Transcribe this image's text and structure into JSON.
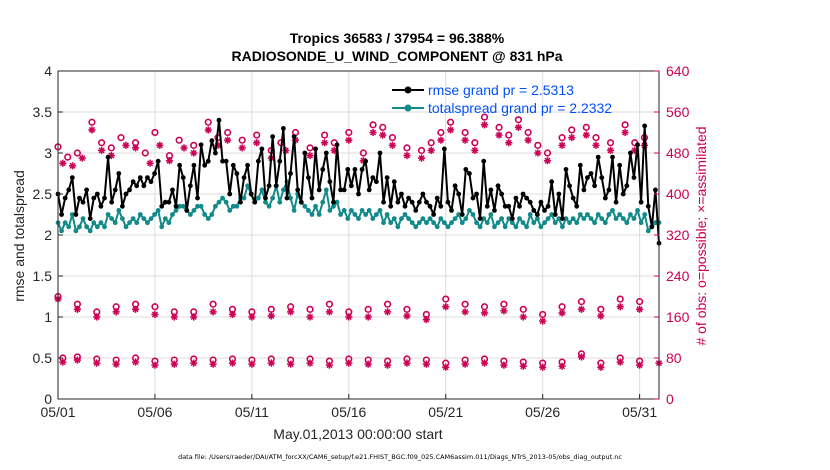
{
  "colors": {
    "rmse": "#000000",
    "spread": "#138a8a",
    "obs": "#cc0055",
    "legend_text": "#0050ff",
    "grid": "#dcdcdc"
  },
  "chart_data": {
    "type": "line",
    "title_line1": "Tropics 36583 / 37954 = 96.388%",
    "title_line2": "RADIOSONDE_U_WIND_COMPONENT @ 831 hPa",
    "xlabel": "May.01,2013 00:00:00 start",
    "ylabel": "rmse and totalspread",
    "ylabel_right": "# of obs: o=possible; ×=assimilated",
    "footnote": "data file: /Users/raeder/DAI/ATM_forcXX/CAM6_setup/f.e21.FHIST_BGC.f09_025.CAM6assim.011/Diags_NTrS_2013-05/obs_diag_output.nc",
    "legend_location": "top-right",
    "grid": true,
    "xlim": [
      1,
      32
    ],
    "ylim": [
      0,
      4
    ],
    "ylim_right": [
      0,
      640
    ],
    "x_tick_values": [
      1,
      6,
      11,
      16,
      21,
      26,
      31
    ],
    "x_tick_labels": [
      "05/01",
      "05/06",
      "05/11",
      "05/16",
      "05/21",
      "05/26",
      "05/31"
    ],
    "y_ticks": [
      "0",
      "0.5",
      "1",
      "1.5",
      "2",
      "2.5",
      "3",
      "3.5",
      "4"
    ],
    "y_ticks_right": [
      "0",
      "80",
      "160",
      "240",
      "320",
      "400",
      "480",
      "560",
      "640"
    ],
    "series": [
      {
        "name": "rmse grand pr = 2.5313",
        "marker": "dot",
        "values": [
          2.5,
          2.25,
          2.45,
          2.55,
          2.7,
          2.25,
          2.45,
          2.4,
          2.55,
          2.2,
          2.45,
          2.5,
          2.35,
          2.45,
          2.95,
          2.4,
          2.55,
          2.75,
          2.35,
          2.5,
          2.55,
          2.65,
          2.6,
          2.7,
          2.6,
          2.7,
          2.65,
          2.75,
          2.9,
          2.35,
          2.4,
          2.4,
          2.55,
          2.35,
          2.85,
          2.7,
          2.3,
          2.6,
          2.85,
          2.45,
          3.1,
          2.85,
          2.9,
          3.15,
          3.0,
          3.4,
          2.9,
          2.9,
          2.5,
          2.85,
          2.75,
          2.4,
          2.7,
          2.85,
          2.5,
          2.4,
          2.9,
          3.05,
          2.45,
          2.6,
          3.2,
          2.6,
          2.9,
          3.3,
          2.45,
          2.75,
          3.2,
          2.55,
          2.4,
          3.0,
          2.7,
          2.45,
          3.05,
          2.55,
          2.8,
          3.0,
          2.65,
          2.4,
          3.1,
          2.55,
          2.55,
          2.8,
          2.6,
          2.8,
          2.5,
          2.8,
          2.9,
          2.55,
          2.7,
          2.65,
          3.0,
          2.4,
          2.7,
          2.35,
          2.65,
          2.4,
          2.5,
          2.35,
          2.45,
          2.4,
          2.3,
          2.4,
          2.5,
          2.4,
          2.35,
          2.25,
          2.45,
          2.35,
          3.05,
          2.4,
          2.3,
          2.6,
          2.5,
          2.25,
          2.8,
          2.75,
          2.45,
          2.5,
          2.2,
          2.9,
          2.35,
          2.55,
          2.3,
          2.6,
          2.5,
          2.35,
          2.35,
          2.2,
          2.45,
          2.35,
          2.5,
          2.45,
          2.4,
          2.3,
          2.25,
          2.4,
          2.3,
          2.35,
          2.65,
          2.25,
          2.5,
          2.2,
          2.8,
          2.6,
          2.45,
          2.35,
          2.85,
          2.55,
          2.7,
          2.75,
          2.6,
          2.95,
          2.7,
          2.45,
          2.55,
          2.95,
          2.4,
          2.85,
          2.5,
          2.6,
          3.0,
          2.7,
          3.1,
          2.4,
          3.33,
          2.35,
          2.1,
          2.55,
          1.9
        ]
      },
      {
        "name": "totalspread grand pr = 2.2332",
        "marker": "dot",
        "values": [
          2.15,
          2.05,
          2.15,
          2.1,
          2.25,
          2.05,
          2.1,
          2.2,
          2.1,
          2.05,
          2.15,
          2.1,
          2.15,
          2.1,
          2.25,
          2.2,
          2.15,
          2.3,
          2.2,
          2.1,
          2.15,
          2.2,
          2.15,
          2.25,
          2.2,
          2.15,
          2.2,
          2.25,
          2.3,
          2.1,
          2.2,
          2.15,
          2.25,
          2.3,
          2.35,
          2.35,
          2.3,
          2.25,
          2.3,
          2.35,
          2.35,
          2.25,
          2.2,
          2.25,
          2.35,
          2.4,
          2.45,
          2.4,
          2.3,
          2.35,
          2.35,
          2.45,
          2.45,
          2.6,
          2.5,
          2.4,
          2.45,
          2.55,
          2.4,
          2.35,
          2.45,
          2.6,
          2.4,
          2.55,
          2.65,
          2.45,
          2.3,
          2.5,
          2.4,
          2.35,
          2.3,
          2.25,
          2.35,
          2.25,
          2.4,
          2.55,
          2.3,
          2.35,
          2.4,
          2.25,
          2.3,
          2.2,
          2.3,
          2.25,
          2.2,
          2.3,
          2.25,
          2.3,
          2.2,
          2.25,
          2.3,
          2.15,
          2.25,
          2.15,
          2.2,
          2.1,
          2.2,
          2.25,
          2.2,
          2.15,
          2.1,
          2.15,
          2.2,
          2.15,
          2.2,
          2.15,
          2.1,
          2.2,
          2.15,
          2.1,
          2.15,
          2.2,
          2.25,
          2.15,
          2.2,
          2.3,
          2.25,
          2.15,
          2.1,
          2.2,
          2.15,
          2.25,
          2.1,
          2.15,
          2.2,
          2.1,
          2.2,
          2.15,
          2.1,
          2.2,
          2.15,
          2.1,
          2.25,
          2.15,
          2.2,
          2.1,
          2.15,
          2.2,
          2.25,
          2.15,
          2.2,
          2.1,
          2.2,
          2.15,
          2.2,
          2.15,
          2.25,
          2.2,
          2.25,
          2.2,
          2.15,
          2.25,
          2.2,
          2.15,
          2.25,
          2.3,
          2.2,
          2.25,
          2.2,
          2.15,
          2.25,
          2.2,
          2.3,
          2.15,
          2.25,
          2.05,
          2.1,
          2.15,
          2.15
        ]
      }
    ],
    "obs_possible": [
      {
        "x": 1.0,
        "y": 492
      },
      {
        "x": 1.5,
        "y": 472
      },
      {
        "x": 2.0,
        "y": 480
      },
      {
        "x": 2.75,
        "y": 540
      },
      {
        "x": 3.25,
        "y": 500
      },
      {
        "x": 3.75,
        "y": 490
      },
      {
        "x": 4.25,
        "y": 510
      },
      {
        "x": 5.0,
        "y": 500
      },
      {
        "x": 5.5,
        "y": 480
      },
      {
        "x": 6.0,
        "y": 520
      },
      {
        "x": 6.75,
        "y": 475
      },
      {
        "x": 7.25,
        "y": 505
      },
      {
        "x": 8.0,
        "y": 495
      },
      {
        "x": 8.75,
        "y": 540
      },
      {
        "x": 9.25,
        "y": 510
      },
      {
        "x": 9.75,
        "y": 520
      },
      {
        "x": 10.5,
        "y": 505
      },
      {
        "x": 11.25,
        "y": 515
      },
      {
        "x": 12.0,
        "y": 485
      },
      {
        "x": 12.5,
        "y": 500
      },
      {
        "x": 13.25,
        "y": 520
      },
      {
        "x": 14.0,
        "y": 490
      },
      {
        "x": 14.75,
        "y": 515
      },
      {
        "x": 15.25,
        "y": 500
      },
      {
        "x": 16.0,
        "y": 520
      },
      {
        "x": 16.75,
        "y": 480
      },
      {
        "x": 17.25,
        "y": 535
      },
      {
        "x": 17.75,
        "y": 530
      },
      {
        "x": 18.25,
        "y": 510
      },
      {
        "x": 19.0,
        "y": 490
      },
      {
        "x": 19.75,
        "y": 485
      },
      {
        "x": 20.25,
        "y": 500
      },
      {
        "x": 20.75,
        "y": 520
      },
      {
        "x": 21.25,
        "y": 540
      },
      {
        "x": 22.0,
        "y": 520
      },
      {
        "x": 22.5,
        "y": 500
      },
      {
        "x": 23.0,
        "y": 550
      },
      {
        "x": 23.75,
        "y": 530
      },
      {
        "x": 24.25,
        "y": 515
      },
      {
        "x": 24.75,
        "y": 545
      },
      {
        "x": 25.25,
        "y": 520
      },
      {
        "x": 25.75,
        "y": 495
      },
      {
        "x": 26.25,
        "y": 480
      },
      {
        "x": 27.0,
        "y": 510
      },
      {
        "x": 27.5,
        "y": 525
      },
      {
        "x": 28.25,
        "y": 530
      },
      {
        "x": 28.75,
        "y": 510
      },
      {
        "x": 29.5,
        "y": 500
      },
      {
        "x": 30.25,
        "y": 535
      },
      {
        "x": 30.75,
        "y": 500
      },
      {
        "x": 31.25,
        "y": 510
      },
      {
        "x": 1.0,
        "y": 200
      },
      {
        "x": 2.0,
        "y": 185
      },
      {
        "x": 3.0,
        "y": 170
      },
      {
        "x": 4.0,
        "y": 180
      },
      {
        "x": 5.0,
        "y": 185
      },
      {
        "x": 6.0,
        "y": 180
      },
      {
        "x": 7.0,
        "y": 170
      },
      {
        "x": 8.0,
        "y": 170
      },
      {
        "x": 9.0,
        "y": 185
      },
      {
        "x": 10.0,
        "y": 175
      },
      {
        "x": 11.0,
        "y": 170
      },
      {
        "x": 12.0,
        "y": 175
      },
      {
        "x": 13.0,
        "y": 180
      },
      {
        "x": 14.0,
        "y": 175
      },
      {
        "x": 15.0,
        "y": 185
      },
      {
        "x": 16.0,
        "y": 170
      },
      {
        "x": 17.0,
        "y": 175
      },
      {
        "x": 18.0,
        "y": 185
      },
      {
        "x": 19.0,
        "y": 175
      },
      {
        "x": 20.0,
        "y": 165
      },
      {
        "x": 21.0,
        "y": 195
      },
      {
        "x": 22.0,
        "y": 185
      },
      {
        "x": 23.0,
        "y": 180
      },
      {
        "x": 24.0,
        "y": 185
      },
      {
        "x": 25.0,
        "y": 175
      },
      {
        "x": 26.0,
        "y": 165
      },
      {
        "x": 27.0,
        "y": 180
      },
      {
        "x": 28.0,
        "y": 190
      },
      {
        "x": 29.0,
        "y": 175
      },
      {
        "x": 30.0,
        "y": 195
      },
      {
        "x": 31.0,
        "y": 190
      },
      {
        "x": 1.25,
        "y": 80
      },
      {
        "x": 2.0,
        "y": 82
      },
      {
        "x": 3.0,
        "y": 78
      },
      {
        "x": 4.0,
        "y": 76
      },
      {
        "x": 5.0,
        "y": 80
      },
      {
        "x": 6.0,
        "y": 74
      },
      {
        "x": 7.0,
        "y": 76
      },
      {
        "x": 8.0,
        "y": 78
      },
      {
        "x": 9.0,
        "y": 76
      },
      {
        "x": 10.0,
        "y": 78
      },
      {
        "x": 11.0,
        "y": 76
      },
      {
        "x": 12.0,
        "y": 78
      },
      {
        "x": 13.0,
        "y": 76
      },
      {
        "x": 14.0,
        "y": 78
      },
      {
        "x": 15.0,
        "y": 74
      },
      {
        "x": 16.0,
        "y": 78
      },
      {
        "x": 17.0,
        "y": 76
      },
      {
        "x": 18.0,
        "y": 74
      },
      {
        "x": 19.0,
        "y": 78
      },
      {
        "x": 20.0,
        "y": 76
      },
      {
        "x": 21.0,
        "y": 70
      },
      {
        "x": 22.0,
        "y": 76
      },
      {
        "x": 23.0,
        "y": 78
      },
      {
        "x": 24.0,
        "y": 74
      },
      {
        "x": 25.0,
        "y": 72
      },
      {
        "x": 26.0,
        "y": 70
      },
      {
        "x": 27.0,
        "y": 72
      },
      {
        "x": 28.0,
        "y": 88
      },
      {
        "x": 29.0,
        "y": 70
      },
      {
        "x": 30.0,
        "y": 80
      },
      {
        "x": 31.0,
        "y": 74
      }
    ],
    "obs_assimilated": [
      {
        "x": 1.25,
        "y": 460
      },
      {
        "x": 1.75,
        "y": 455
      },
      {
        "x": 2.25,
        "y": 470
      },
      {
        "x": 2.75,
        "y": 525
      },
      {
        "x": 3.25,
        "y": 485
      },
      {
        "x": 3.75,
        "y": 475
      },
      {
        "x": 4.5,
        "y": 495
      },
      {
        "x": 5.0,
        "y": 490
      },
      {
        "x": 5.75,
        "y": 460
      },
      {
        "x": 6.25,
        "y": 495
      },
      {
        "x": 6.75,
        "y": 465
      },
      {
        "x": 7.5,
        "y": 490
      },
      {
        "x": 8.0,
        "y": 480
      },
      {
        "x": 8.75,
        "y": 525
      },
      {
        "x": 9.25,
        "y": 495
      },
      {
        "x": 9.75,
        "y": 505
      },
      {
        "x": 10.5,
        "y": 490
      },
      {
        "x": 11.25,
        "y": 500
      },
      {
        "x": 12.0,
        "y": 470
      },
      {
        "x": 12.75,
        "y": 485
      },
      {
        "x": 13.25,
        "y": 505
      },
      {
        "x": 14.0,
        "y": 475
      },
      {
        "x": 14.75,
        "y": 500
      },
      {
        "x": 15.25,
        "y": 485
      },
      {
        "x": 16.0,
        "y": 505
      },
      {
        "x": 16.75,
        "y": 465
      },
      {
        "x": 17.25,
        "y": 520
      },
      {
        "x": 17.75,
        "y": 515
      },
      {
        "x": 18.25,
        "y": 495
      },
      {
        "x": 19.0,
        "y": 475
      },
      {
        "x": 19.75,
        "y": 470
      },
      {
        "x": 20.25,
        "y": 485
      },
      {
        "x": 20.75,
        "y": 505
      },
      {
        "x": 21.25,
        "y": 525
      },
      {
        "x": 22.0,
        "y": 505
      },
      {
        "x": 22.5,
        "y": 485
      },
      {
        "x": 23.0,
        "y": 535
      },
      {
        "x": 23.75,
        "y": 515
      },
      {
        "x": 24.25,
        "y": 500
      },
      {
        "x": 24.75,
        "y": 530
      },
      {
        "x": 25.25,
        "y": 505
      },
      {
        "x": 25.75,
        "y": 480
      },
      {
        "x": 26.25,
        "y": 465
      },
      {
        "x": 27.0,
        "y": 495
      },
      {
        "x": 27.5,
        "y": 510
      },
      {
        "x": 28.25,
        "y": 515
      },
      {
        "x": 28.75,
        "y": 495
      },
      {
        "x": 29.5,
        "y": 485
      },
      {
        "x": 30.25,
        "y": 520
      },
      {
        "x": 30.75,
        "y": 485
      },
      {
        "x": 31.25,
        "y": 495
      },
      {
        "x": 1.0,
        "y": 195
      },
      {
        "x": 2.0,
        "y": 175
      },
      {
        "x": 3.0,
        "y": 160
      },
      {
        "x": 4.0,
        "y": 170
      },
      {
        "x": 5.0,
        "y": 175
      },
      {
        "x": 6.0,
        "y": 165
      },
      {
        "x": 7.0,
        "y": 160
      },
      {
        "x": 8.0,
        "y": 160
      },
      {
        "x": 9.0,
        "y": 170
      },
      {
        "x": 10.0,
        "y": 165
      },
      {
        "x": 11.0,
        "y": 160
      },
      {
        "x": 12.0,
        "y": 162
      },
      {
        "x": 13.0,
        "y": 170
      },
      {
        "x": 14.0,
        "y": 160
      },
      {
        "x": 15.0,
        "y": 170
      },
      {
        "x": 16.0,
        "y": 160
      },
      {
        "x": 17.0,
        "y": 160
      },
      {
        "x": 18.0,
        "y": 170
      },
      {
        "x": 19.0,
        "y": 162
      },
      {
        "x": 20.0,
        "y": 155
      },
      {
        "x": 21.0,
        "y": 180
      },
      {
        "x": 22.0,
        "y": 170
      },
      {
        "x": 23.0,
        "y": 168
      },
      {
        "x": 24.0,
        "y": 172
      },
      {
        "x": 25.0,
        "y": 160
      },
      {
        "x": 26.0,
        "y": 152
      },
      {
        "x": 27.0,
        "y": 168
      },
      {
        "x": 28.0,
        "y": 175
      },
      {
        "x": 29.0,
        "y": 162
      },
      {
        "x": 30.0,
        "y": 180
      },
      {
        "x": 31.0,
        "y": 175
      },
      {
        "x": 1.25,
        "y": 72
      },
      {
        "x": 2.0,
        "y": 76
      },
      {
        "x": 3.0,
        "y": 70
      },
      {
        "x": 4.0,
        "y": 68
      },
      {
        "x": 5.0,
        "y": 72
      },
      {
        "x": 6.0,
        "y": 66
      },
      {
        "x": 7.0,
        "y": 68
      },
      {
        "x": 8.0,
        "y": 70
      },
      {
        "x": 9.0,
        "y": 68
      },
      {
        "x": 10.0,
        "y": 70
      },
      {
        "x": 11.0,
        "y": 68
      },
      {
        "x": 12.0,
        "y": 70
      },
      {
        "x": 13.0,
        "y": 68
      },
      {
        "x": 14.0,
        "y": 70
      },
      {
        "x": 15.0,
        "y": 66
      },
      {
        "x": 16.0,
        "y": 70
      },
      {
        "x": 17.0,
        "y": 68
      },
      {
        "x": 18.0,
        "y": 66
      },
      {
        "x": 19.0,
        "y": 70
      },
      {
        "x": 20.0,
        "y": 68
      },
      {
        "x": 21.0,
        "y": 62
      },
      {
        "x": 22.0,
        "y": 68
      },
      {
        "x": 23.0,
        "y": 70
      },
      {
        "x": 24.0,
        "y": 66
      },
      {
        "x": 25.0,
        "y": 64
      },
      {
        "x": 26.0,
        "y": 62
      },
      {
        "x": 27.0,
        "y": 64
      },
      {
        "x": 28.0,
        "y": 82
      },
      {
        "x": 29.0,
        "y": 62
      },
      {
        "x": 30.0,
        "y": 72
      },
      {
        "x": 31.0,
        "y": 66
      },
      {
        "x": 32.0,
        "y": 70
      }
    ]
  }
}
